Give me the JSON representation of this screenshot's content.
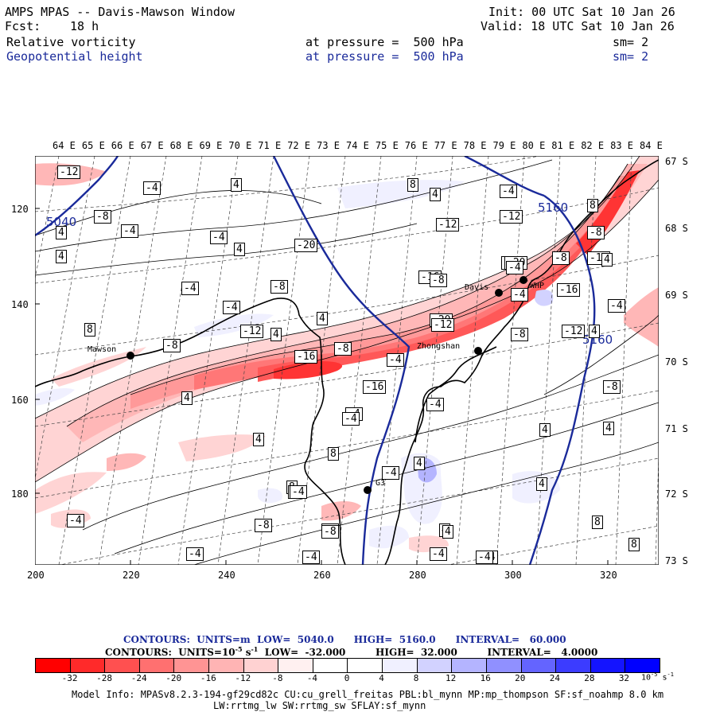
{
  "header": {
    "title": "AMPS MPAS -- Davis-Mawson Window",
    "init": "Init: 00 UTC Sat 10 Jan 26",
    "fcst_label": "Fcst:",
    "fcst_value": "18 h",
    "valid": "Valid: 18 UTC Sat 10 Jan 26",
    "field1": {
      "name": "Relative vorticity",
      "level": "at pressure =  500 hPa",
      "sm": "sm= 2"
    },
    "field2": {
      "name": "Geopotential height",
      "level": "at pressure =  500 hPa",
      "sm": "sm= 2"
    }
  },
  "top_lon_labels": [
    "64 E",
    "65 E",
    "66 E",
    "67 E",
    "68 E",
    "69 E",
    "70 E",
    "71 E",
    "72 E",
    "73 E",
    "74 E",
    "75 E",
    "76 E",
    "77 E",
    "78 E",
    "79 E",
    "80 E",
    "81 E",
    "82 E",
    "83 E",
    "84 E"
  ],
  "right_lat_labels": [
    "67 S",
    "68 S",
    "69 S",
    "70 S",
    "71 S",
    "72 S",
    "73 S"
  ],
  "left_axis_labels": [
    "120",
    "140",
    "160",
    "180"
  ],
  "bottom_axis_labels": [
    "200",
    "220",
    "240",
    "260",
    "280",
    "300",
    "320"
  ],
  "stations": [
    {
      "name": "Mawson"
    },
    {
      "name": "Davis"
    },
    {
      "name": "WHP"
    },
    {
      "name": "Zhongshan"
    },
    {
      "name": "G3"
    }
  ],
  "height_contour_labels": [
    "5040",
    "5160",
    "5160"
  ],
  "vorticity_labels": [
    "-12",
    "-4",
    "4",
    "8",
    "4",
    "-4",
    "8",
    "-12",
    "-4",
    "4",
    "-8",
    "4",
    "-4",
    "4",
    "-8",
    "-12",
    "-4",
    "-12",
    "-8",
    "4",
    "-20",
    "-4",
    "-8",
    "-16",
    "-4",
    "4",
    "8",
    "-12",
    "-8",
    "4",
    "-8",
    "-20",
    "-16",
    "-12",
    "-4",
    "4",
    "-16",
    "-4",
    "-8",
    "-4",
    "4",
    "-4",
    "4",
    "-8",
    "8",
    "4",
    "4",
    "-4",
    "8",
    "-4",
    "4",
    "-4",
    "-8",
    "-4",
    "-8",
    "-4",
    "-8",
    "8",
    "8",
    "-4",
    "-4",
    "-8",
    "-4",
    "4",
    "4",
    "-4",
    "4",
    "-20",
    "-12",
    "-4",
    "-8",
    "-16",
    "-4"
  ],
  "contour_info": {
    "line1": "CONTOURS:  UNITS=m  LOW=  5040.0      HIGH=  5160.0      INTERVAL=   60.000",
    "line2_units": "CONTOURS:  UNITS=10",
    "line2_exp": "-5",
    "line2_s": " s",
    "line2_exp2": "-1",
    "line2_rest": "  LOW=  -32.000         HIGH=  32.000         INTERVAL=   4.0000"
  },
  "colorbar": {
    "colors": [
      "#ff0000",
      "#ff2a2a",
      "#ff5050",
      "#ff7070",
      "#ff9494",
      "#ffb4b4",
      "#ffd2d2",
      "#fff0f0",
      "#ffffff",
      "#ffffff",
      "#f0f0ff",
      "#d2d2ff",
      "#b4b4ff",
      "#9090ff",
      "#6464ff",
      "#3c3cff",
      "#1414ff",
      "#0000ff"
    ],
    "ticks": [
      "-32",
      "-28",
      "-24",
      "-20",
      "-16",
      "-12",
      "-8",
      "-4",
      "0",
      "4",
      "8",
      "12",
      "16",
      "20",
      "24",
      "28",
      "32"
    ],
    "unit": "10",
    "unit_exp": "-5",
    "unit_s": " s",
    "unit_exp2": "-1"
  },
  "model_info": {
    "line1": "Model Info: MPASv8.2.3-194-gf29cd82c CU:cu_grell_freitas PBL:bl_mynn MP:mp_thompson SF:sf_noahmp 8.0 km",
    "line2": "LW:rrtmg_lw SW:rrtmg_sw SFLAY:sf_mynn"
  },
  "colors": {
    "height_contour": "#1a2a9a",
    "header_blue": "#1a2a9a"
  }
}
